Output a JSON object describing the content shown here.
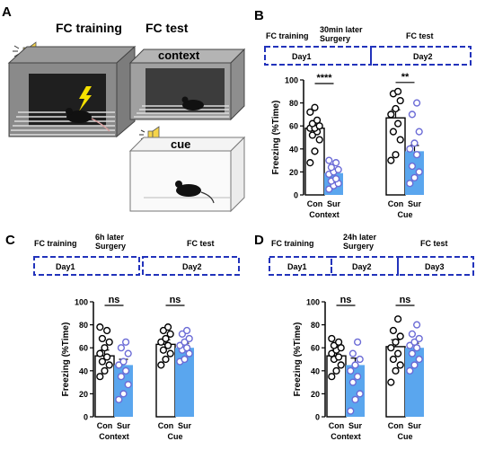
{
  "panels": {
    "A": {
      "letter": "A",
      "training_title": "FC training",
      "test_title": "FC test",
      "context_label": "context",
      "cue_label": "cue"
    },
    "B": {
      "letter": "B",
      "timeline": {
        "left_label": "FC training",
        "mid_label": "30min later\nSurgery",
        "right_label": "FC test",
        "boxes": [
          "Day1",
          "Day2"
        ]
      }
    },
    "C": {
      "letter": "C",
      "timeline": {
        "left_label": "FC training",
        "mid_label": "6h later\nSurgery",
        "right_label": "FC test",
        "boxes": [
          "Day1",
          "Day2"
        ]
      }
    },
    "D": {
      "letter": "D",
      "timeline": {
        "left_label": "FC training",
        "mid_label": "24h later\nSurgery",
        "right_label": "FC test",
        "boxes": [
          "Day1",
          "Day2",
          "Day3"
        ]
      }
    }
  },
  "colors": {
    "con_bar": "#ffffff",
    "sur_bar": "#5aa6ee",
    "sur_dot": "#6b6bd6",
    "con_dot": "#000000",
    "dashed_box": "#2233bb"
  },
  "chart_data": [
    {
      "panel": "B",
      "type": "bar",
      "ylabel": "Freezing (%Time)",
      "ylim": [
        0,
        100
      ],
      "yticks": [
        0,
        20,
        40,
        60,
        80,
        100
      ],
      "groups": [
        "Context",
        "Cue"
      ],
      "categories": [
        "Con",
        "Sur"
      ],
      "significance": [
        "****",
        "**"
      ],
      "series": [
        {
          "name": "Con",
          "values": [
            58,
            67
          ],
          "sem": [
            5,
            7
          ],
          "points": [
            [
              28,
              38,
              48,
              52,
              55,
              58,
              58,
              60,
              62,
              65,
              72,
              76
            ],
            [
              30,
              35,
              48,
              55,
              62,
              70,
              75,
              82,
              88,
              90
            ]
          ]
        },
        {
          "name": "Sur",
          "values": [
            19,
            38
          ],
          "sem": [
            3,
            5
          ],
          "points": [
            [
              5,
              8,
              10,
              12,
              14,
              18,
              20,
              22,
              24,
              28,
              30
            ],
            [
              10,
              15,
              20,
              25,
              35,
              40,
              45,
              55,
              70,
              80
            ]
          ]
        }
      ]
    },
    {
      "panel": "C",
      "type": "bar",
      "ylabel": "Freezing (%Time)",
      "ylim": [
        0,
        100
      ],
      "yticks": [
        0,
        20,
        40,
        60,
        80,
        100
      ],
      "groups": [
        "Context",
        "Cue"
      ],
      "categories": [
        "Con",
        "Sur"
      ],
      "significance": [
        "ns",
        "ns"
      ],
      "series": [
        {
          "name": "Con",
          "values": [
            53,
            63
          ],
          "sem": [
            5,
            4
          ],
          "points": [
            [
              35,
              40,
              45,
              48,
              52,
              55,
              60,
              65,
              68,
              75,
              78
            ],
            [
              45,
              50,
              55,
              58,
              62,
              65,
              68,
              72,
              75,
              78
            ]
          ]
        },
        {
          "name": "Sur",
          "values": [
            45,
            60
          ],
          "sem": [
            5,
            4
          ],
          "points": [
            [
              15,
              20,
              28,
              35,
              40,
              45,
              48,
              55,
              60,
              65
            ],
            [
              48,
              50,
              55,
              58,
              60,
              62,
              65,
              68,
              72,
              75
            ]
          ]
        }
      ]
    },
    {
      "panel": "D",
      "type": "bar",
      "ylabel": "Freezing (%Time)",
      "ylim": [
        0,
        100
      ],
      "yticks": [
        0,
        20,
        40,
        60,
        80,
        100
      ],
      "groups": [
        "Context",
        "Cue"
      ],
      "categories": [
        "Con",
        "Sur"
      ],
      "significance": [
        "ns",
        "ns"
      ],
      "series": [
        {
          "name": "Con",
          "values": [
            53,
            61
          ],
          "sem": [
            5,
            6
          ],
          "points": [
            [
              35,
              40,
              45,
              50,
              52,
              55,
              58,
              60,
              62,
              65,
              68
            ],
            [
              30,
              40,
              45,
              50,
              55,
              60,
              65,
              70,
              75,
              85
            ]
          ]
        },
        {
          "name": "Sur",
          "values": [
            45,
            60
          ],
          "sem": [
            6,
            4
          ],
          "points": [
            [
              5,
              15,
              20,
              30,
              35,
              40,
              45,
              50,
              55,
              65
            ],
            [
              40,
              45,
              50,
              55,
              60,
              62,
              65,
              68,
              72,
              80
            ]
          ]
        }
      ]
    }
  ]
}
